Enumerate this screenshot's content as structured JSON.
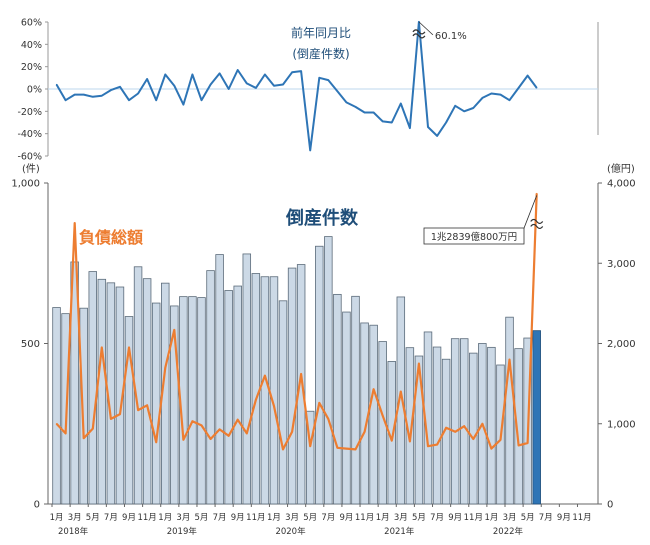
{
  "chart_data": [
    {
      "type": "line",
      "title": "前年同月比",
      "subtitle": "(倒産件数)",
      "ylim": [
        -60,
        60
      ],
      "yticks": [
        "60%",
        "40%",
        "20%",
        "0%",
        "-20%",
        "-40%",
        "-60%"
      ],
      "annotation": "60.1%",
      "series": [
        {
          "color": "#2e75b6",
          "values": [
            4,
            -10,
            -5,
            -5,
            -7,
            -6,
            -1,
            2,
            -10,
            -4,
            9,
            -10,
            13,
            3,
            -14,
            13,
            -10,
            4,
            14,
            0,
            17,
            5,
            1,
            13,
            3,
            4,
            15,
            16,
            -55,
            10,
            8,
            -2,
            -12,
            -16,
            -21,
            -21,
            -29,
            -30,
            -13,
            -35,
            60.1,
            -34,
            -42,
            -30,
            -15,
            -20,
            -17,
            -8,
            -4,
            -5,
            -10,
            1,
            12,
            1
          ]
        }
      ]
    },
    {
      "type": "bar",
      "title": "倒産件数",
      "unit_left": "(件)",
      "ylim": [
        0,
        1000
      ],
      "yticks": [
        "0",
        "500",
        "1,000"
      ],
      "x_labels": [
        "1月",
        "3月",
        "5月",
        "7月",
        "9月",
        "11月",
        "1月",
        "3月",
        "5月",
        "7月",
        "9月",
        "11月",
        "1月",
        "3月",
        "5月",
        "7月",
        "9月",
        "11月",
        "1月",
        "3月",
        "5月",
        "7月",
        "9月",
        "11月",
        "1月",
        "3月",
        "5月",
        "7月",
        "9月",
        "11月"
      ],
      "years": [
        "2018年",
        "2019年",
        "2020年",
        "2021年",
        "2022年"
      ],
      "bar_color": "#ccd9e6",
      "bar_highlight_color": "#2e75b6",
      "values": [
        612,
        593,
        754,
        610,
        724,
        700,
        689,
        676,
        584,
        739,
        702,
        626,
        688,
        617,
        646,
        646,
        643,
        727,
        777,
        665,
        679,
        779,
        718,
        708,
        708,
        633,
        735,
        746,
        289,
        803,
        833,
        653,
        598,
        647,
        564,
        557,
        506,
        444,
        645,
        487,
        461,
        536,
        489,
        451,
        515,
        515,
        470,
        500,
        488,
        433,
        582,
        484,
        517,
        540
      ]
    },
    {
      "type": "line",
      "title": "負債総額",
      "unit_right": "(億円)",
      "ylim": [
        0,
        4000
      ],
      "yticks": [
        "0",
        "1,000",
        "2,000",
        "3,000",
        "4,000"
      ],
      "annotation": "1兆2839億800万円",
      "color": "#ed7d31",
      "values": [
        1000,
        880,
        3500,
        820,
        940,
        1950,
        1060,
        1120,
        1950,
        1170,
        1230,
        770,
        1700,
        2170,
        800,
        1030,
        980,
        810,
        930,
        850,
        1050,
        880,
        1300,
        1600,
        1220,
        680,
        900,
        1620,
        720,
        1260,
        1060,
        700,
        690,
        680,
        900,
        1430,
        1100,
        790,
        1400,
        780,
        1750,
        720,
        740,
        950,
        900,
        970,
        810,
        1000,
        690,
        800,
        1800,
        730,
        760,
        3870
      ]
    }
  ]
}
